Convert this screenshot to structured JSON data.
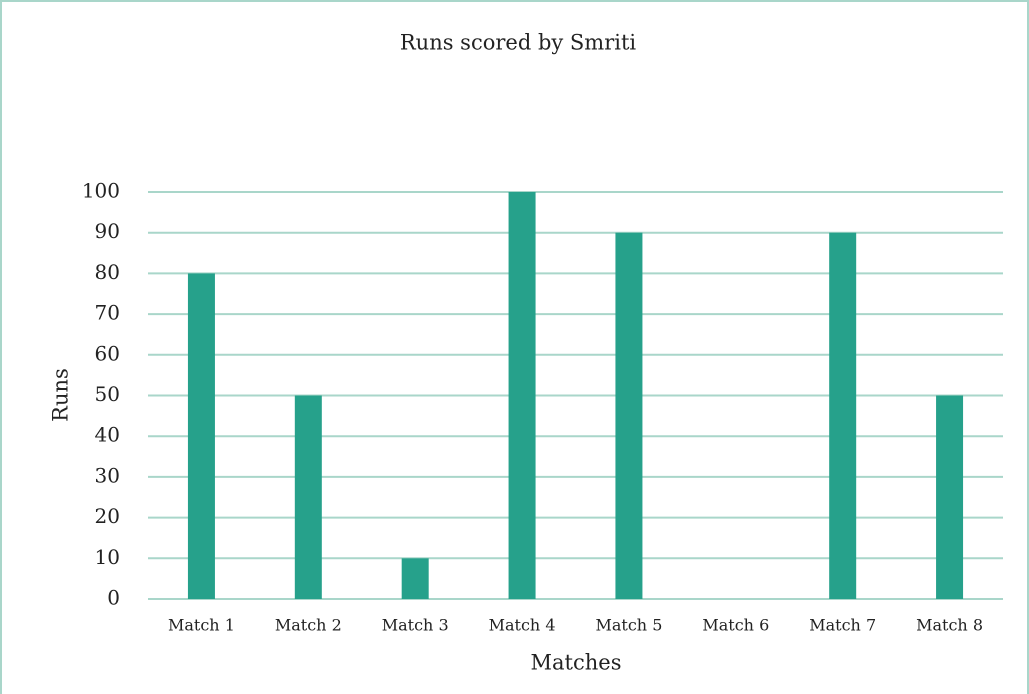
{
  "chart_data": {
    "type": "bar",
    "title": "Runs scored by Smriti",
    "x_label": "Matches",
    "y_label": "Runs",
    "categories": [
      "Match 1",
      "Match 2",
      "Match 3",
      "Match 4",
      "Match 5",
      "Match 6",
      "Match 7",
      "Match 8"
    ],
    "values": [
      80,
      50,
      10,
      100,
      90,
      0,
      90,
      50
    ],
    "color": "#26a18b",
    "ylim": [
      0,
      100
    ],
    "yticks": [
      0,
      10,
      20,
      30,
      40,
      50,
      60,
      70,
      80,
      90,
      100
    ],
    "grid": true
  }
}
